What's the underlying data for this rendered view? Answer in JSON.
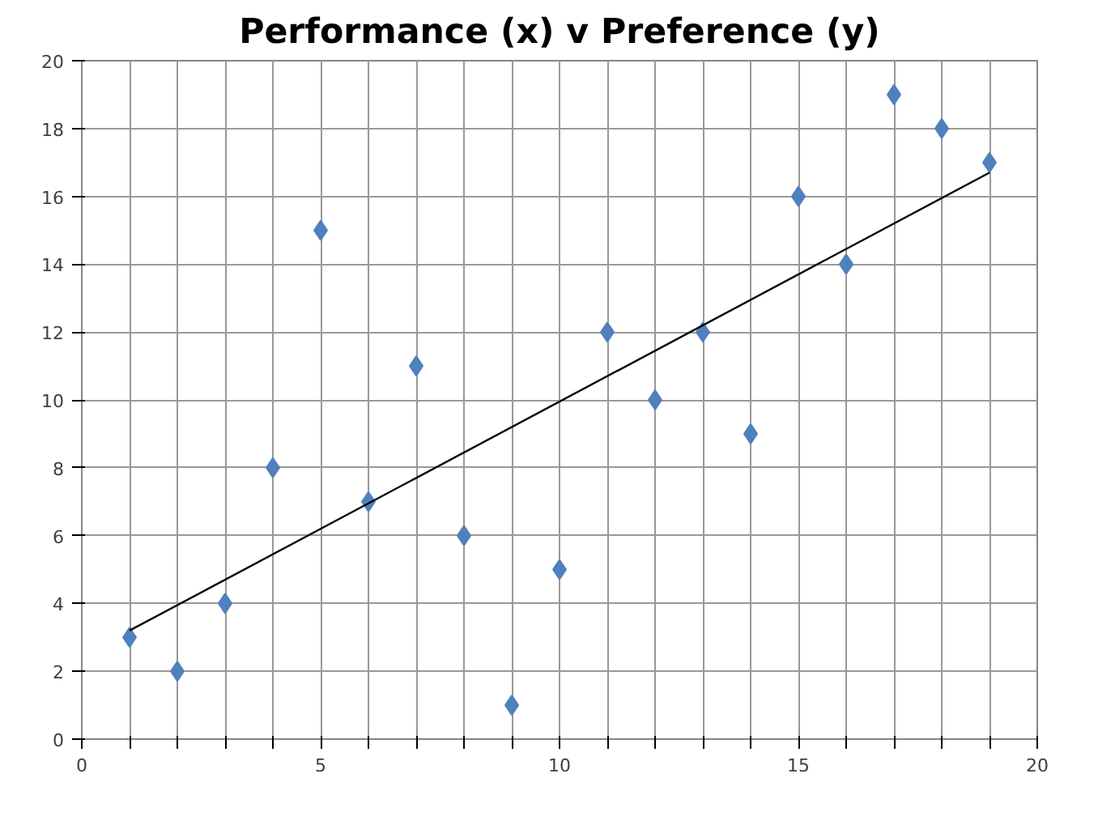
{
  "chart_data": {
    "type": "scatter",
    "title": "Performance (x) v Preference (y)",
    "xlim": [
      0,
      20
    ],
    "ylim": [
      0,
      20
    ],
    "xticks": [
      0,
      {
        "value": 1,
        "label": null
      },
      {
        "value": 2,
        "label": null
      },
      {
        "value": 3,
        "label": null
      },
      {
        "value": 4,
        "label": null
      },
      5,
      {
        "value": 6,
        "label": null
      },
      {
        "value": 7,
        "label": null
      },
      {
        "value": 8,
        "label": null
      },
      {
        "value": 9,
        "label": null
      },
      10,
      {
        "value": 11,
        "label": null
      },
      {
        "value": 12,
        "label": null
      },
      {
        "value": 13,
        "label": null
      },
      {
        "value": 14,
        "label": null
      },
      15,
      {
        "value": 16,
        "label": null
      },
      {
        "value": 17,
        "label": null
      },
      {
        "value": 18,
        "label": null
      },
      {
        "value": 19,
        "label": null
      },
      20
    ],
    "yticks": [
      0,
      2,
      4,
      6,
      8,
      10,
      12,
      14,
      16,
      18,
      20
    ],
    "grid": true,
    "series": [
      {
        "marker": "diamond",
        "color": "#4f81bd",
        "x": [
          1,
          2,
          3,
          4,
          5,
          6,
          7,
          8,
          9,
          10,
          11,
          12,
          13,
          14,
          15,
          16,
          17,
          18,
          19
        ],
        "values": [
          3,
          2,
          4,
          8,
          15,
          7,
          11,
          6,
          1,
          5,
          12,
          10,
          12,
          9,
          16,
          14,
          19,
          18,
          17
        ]
      },
      {
        "type": "line",
        "color": "#000000",
        "x": [
          1,
          19
        ],
        "values": [
          3.2,
          16.7
        ]
      }
    ]
  }
}
